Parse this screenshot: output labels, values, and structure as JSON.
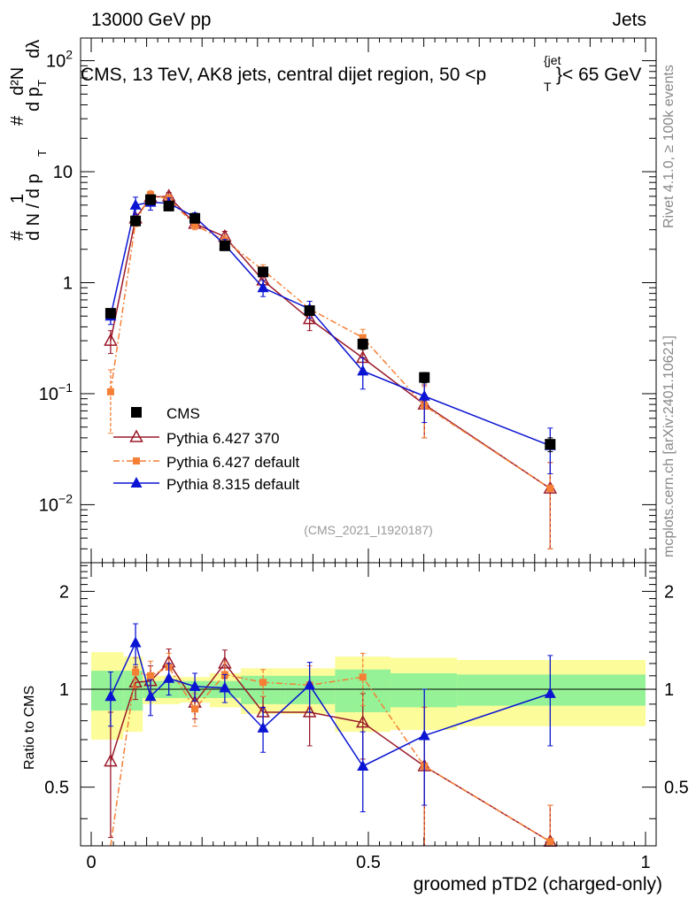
{
  "header": {
    "left": "13000 GeV pp",
    "right": "Jets",
    "title": "CMS, 13 TeV, AK8 jets, central dijet region, 50 <p_T^{jet}< 65 GeV",
    "title_parts": {
      "main": "CMS, 13 TeV, AK8 jets, central dijet region, 50 <p",
      "sub": "T",
      "sup": "{jet",
      "tail": "}< 65 GeV"
    }
  },
  "side_labels": {
    "rivet": "Rivet 4.1.0, ≥ 100k events",
    "mcplots": "mcplots.cern.ch [arXiv:2401.10621]"
  },
  "watermark": "(CMS_2021_I1920187)",
  "legend": [
    {
      "id": "cms",
      "label": "CMS"
    },
    {
      "id": "p6370",
      "label": "Pythia 6.427 370"
    },
    {
      "id": "p6def",
      "label": "Pythia 6.427 default"
    },
    {
      "id": "p8",
      "label": "Pythia 8.315 default"
    }
  ],
  "chart_data": {
    "type": "scatter",
    "xlabel": "groomed pTD2 (charged-only)",
    "xlim": [
      0,
      1
    ],
    "x_ticks": [
      {
        "v": 0,
        "label": "0"
      },
      {
        "v": 0.5,
        "label": "0.5"
      },
      {
        "v": 1,
        "label": "1"
      }
    ],
    "main": {
      "yscale": "log",
      "ylim": [
        0.003,
        160
      ],
      "ylabel": "#  1/(d N / d p_T)  # d²N / (d p_T d λ)",
      "ylabel_parts": {
        "hash": "#",
        "one": "1",
        "dn": "d N / d p",
        "t": "T",
        "num": "d²N",
        "den": "d p",
        "lam": "dλ"
      },
      "y_ticks": [
        {
          "v": 0.01,
          "base": "10",
          "exp": "−2"
        },
        {
          "v": 0.1,
          "base": "10",
          "exp": "−1"
        },
        {
          "v": 1,
          "base": "1",
          "exp": ""
        },
        {
          "v": 10,
          "base": "10",
          "exp": ""
        },
        {
          "v": 100,
          "base": "10",
          "exp": "2"
        }
      ]
    },
    "ratio": {
      "yscale": "log",
      "ylim": [
        0.33,
        2.45
      ],
      "ylabel": "Ratio to CMS",
      "y_ticks": [
        {
          "v": 0.5,
          "label": "0.5"
        },
        {
          "v": 1,
          "label": "1"
        },
        {
          "v": 2,
          "label": "2"
        }
      ]
    },
    "x": [
      0.035,
      0.08,
      0.107,
      0.14,
      0.187,
      0.241,
      0.31,
      0.394,
      0.49,
      0.601,
      0.828
    ],
    "bin_edges": [
      0,
      0.058,
      0.093,
      0.121,
      0.16,
      0.214,
      0.27,
      0.35,
      0.44,
      0.54,
      0.66,
      1.0
    ],
    "cms_band": {
      "inner": [
        0.14,
        0.14,
        0.06,
        0.06,
        0.06,
        0.06,
        0.1,
        0.1,
        0.15,
        0.12,
        0.11
      ],
      "outer": [
        0.3,
        0.26,
        0.1,
        0.1,
        0.09,
        0.12,
        0.16,
        0.16,
        0.26,
        0.25,
        0.23
      ]
    },
    "series": [
      {
        "name": "CMS",
        "color": "#000000",
        "marker": "square",
        "values": [
          0.53,
          3.6,
          5.6,
          4.9,
          3.8,
          2.15,
          1.25,
          0.56,
          0.28,
          0.14,
          0.035
        ],
        "errors": [
          0.05,
          0.2,
          0.3,
          0.3,
          0.25,
          0.15,
          0.1,
          0.05,
          0.03,
          0.015,
          0.005
        ]
      },
      {
        "name": "Pythia 6.427 370",
        "color": "#9a1a2a",
        "marker": "triangle-open",
        "line": "solid",
        "values": [
          0.3,
          3.8,
          5.9,
          6.0,
          3.4,
          2.6,
          1.05,
          0.47,
          0.21,
          0.08,
          0.014
        ],
        "errors": [
          0.07,
          0.35,
          0.5,
          0.5,
          0.3,
          0.3,
          0.15,
          0.1,
          0.05,
          0.04,
          0.01
        ],
        "ratio": [
          0.6,
          1.05,
          1.06,
          1.21,
          0.91,
          1.2,
          0.85,
          0.85,
          0.79,
          0.58,
          0.34
        ],
        "ratio_errors": [
          0.25,
          0.12,
          0.12,
          0.12,
          0.1,
          0.12,
          0.1,
          0.18,
          0.18,
          0.3,
          0.1
        ]
      },
      {
        "name": "Pythia 6.427 default",
        "color": "#f57f35",
        "marker": "square-small",
        "line": "dashdot",
        "values": [
          0.104,
          3.5,
          6.2,
          5.7,
          3.3,
          2.4,
          1.3,
          0.58,
          0.32,
          0.078,
          0.014
        ],
        "errors": [
          0.06,
          0.3,
          0.5,
          0.5,
          0.3,
          0.25,
          0.15,
          0.1,
          0.06,
          0.038,
          0.01
        ],
        "ratio": [
          0.2,
          1.13,
          1.1,
          1.17,
          0.87,
          1.11,
          1.05,
          1.03,
          1.09,
          0.58,
          0.34
        ],
        "ratio_errors": [
          0.1,
          0.12,
          0.12,
          0.12,
          0.1,
          0.1,
          0.1,
          0.15,
          0.2,
          0.3,
          0.1
        ]
      },
      {
        "name": "Pythia 8.315 default",
        "color": "#0a14d2",
        "marker": "triangle",
        "line": "solid",
        "values": [
          0.5,
          5.0,
          5.3,
          5.2,
          3.9,
          2.2,
          0.9,
          0.58,
          0.16,
          0.095,
          0.034
        ],
        "errors": [
          0.08,
          0.9,
          0.8,
          0.6,
          0.35,
          0.25,
          0.15,
          0.1,
          0.05,
          0.04,
          0.015
        ],
        "ratio": [
          0.95,
          1.39,
          0.95,
          1.08,
          1.02,
          1.01,
          0.76,
          1.03,
          0.58,
          0.72,
          0.97
        ],
        "ratio_errors": [
          0.18,
          0.2,
          0.12,
          0.12,
          0.1,
          0.1,
          0.12,
          0.18,
          0.16,
          0.28,
          0.3
        ]
      }
    ]
  }
}
